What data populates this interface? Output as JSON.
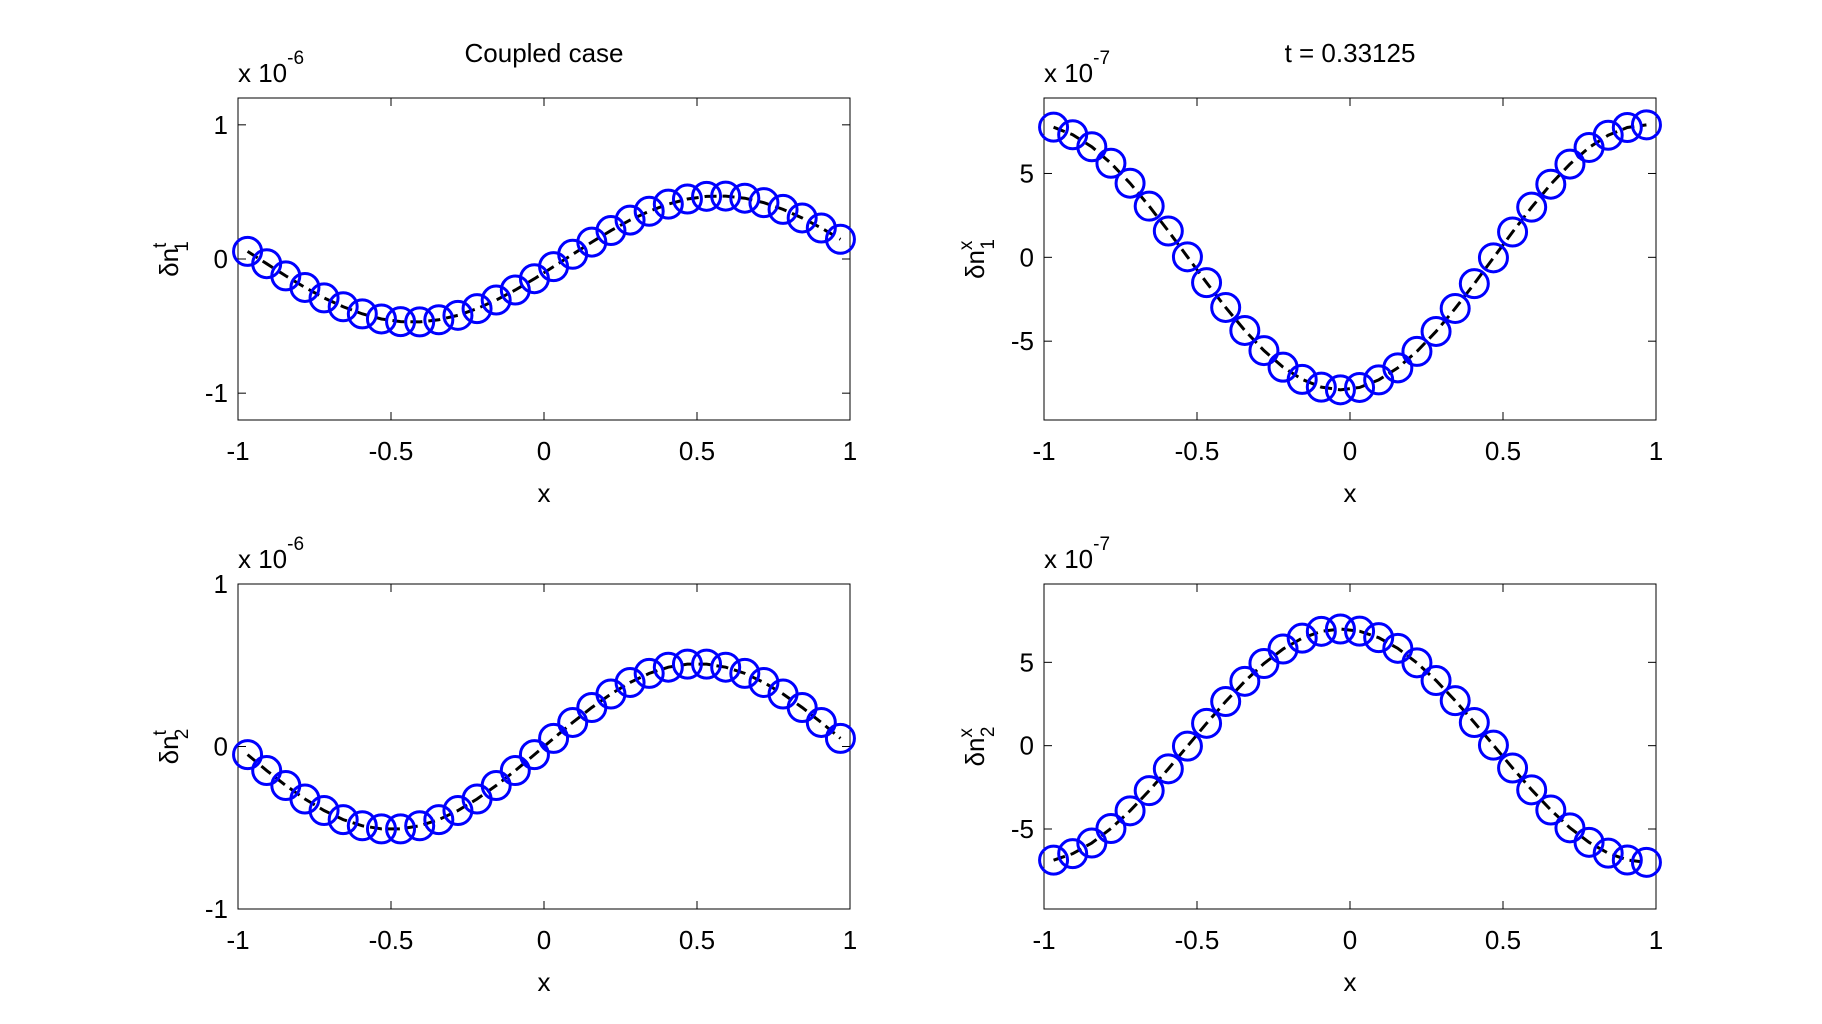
{
  "chart_data": [
    {
      "type": "line",
      "title": "Coupled case",
      "y_multiplier": {
        "base": "x 10",
        "exponent": "-6"
      },
      "ylabel": {
        "base": "δn",
        "superscript": "t",
        "subscript": "1"
      },
      "xlabel": "x",
      "x": [
        -0.96875,
        -0.90625,
        -0.84375,
        -0.78125,
        -0.71875,
        -0.65625,
        -0.59375,
        -0.53125,
        -0.46875,
        -0.40625,
        -0.34375,
        -0.28125,
        -0.21875,
        -0.15625,
        -0.09375,
        -0.03125,
        0.03125,
        0.09375,
        0.15625,
        0.21875,
        0.28125,
        0.34375,
        0.40625,
        0.46875,
        0.53125,
        0.59375,
        0.65625,
        0.71875,
        0.78125,
        0.84375,
        0.90625,
        0.96875
      ],
      "series": [
        {
          "color": "#0000ff",
          "line_color": "#000000",
          "values": [
            0.057,
            -0.035,
            -0.126,
            -0.212,
            -0.29,
            -0.356,
            -0.409,
            -0.447,
            -0.467,
            -0.469,
            -0.453,
            -0.42,
            -0.37,
            -0.306,
            -0.231,
            -0.147,
            -0.057,
            0.035,
            0.126,
            0.212,
            0.29,
            0.356,
            0.409,
            0.447,
            0.467,
            0.469,
            0.453,
            0.42,
            0.37,
            0.306,
            0.231,
            0.147
          ]
        }
      ],
      "xlim": [
        -1,
        1
      ],
      "xticks": [
        -1,
        -0.5,
        0,
        0.5,
        1
      ],
      "ylim": [
        -1.2,
        1.2
      ],
      "yticks": [
        -1,
        0,
        1
      ]
    },
    {
      "type": "line",
      "title": "t = 0.33125",
      "y_multiplier": {
        "base": "x 10",
        "exponent": "-7"
      },
      "ylabel": {
        "base": "δn",
        "superscript": "x",
        "subscript": "1"
      },
      "xlabel": "x",
      "x": [
        -0.96875,
        -0.90625,
        -0.84375,
        -0.78125,
        -0.71875,
        -0.65625,
        -0.59375,
        -0.53125,
        -0.46875,
        -0.40625,
        -0.34375,
        -0.28125,
        -0.21875,
        -0.15625,
        -0.09375,
        -0.03125,
        0.03125,
        0.09375,
        0.15625,
        0.21875,
        0.28125,
        0.34375,
        0.40625,
        0.46875,
        0.53125,
        0.59375,
        0.65625,
        0.71875,
        0.78125,
        0.84375,
        0.90625,
        0.96875
      ],
      "series": [
        {
          "color": "#0000ff",
          "line_color": "#000000",
          "values": [
            7.76,
            7.31,
            6.59,
            5.61,
            4.42,
            3.05,
            1.57,
            0.03,
            -1.51,
            -2.99,
            -4.36,
            -5.56,
            -6.55,
            -7.28,
            -7.74,
            -7.9,
            -7.76,
            -7.31,
            -6.59,
            -5.61,
            -4.42,
            -3.05,
            -1.57,
            -0.03,
            1.51,
            2.99,
            4.36,
            5.56,
            6.55,
            7.28,
            7.74,
            7.9
          ]
        }
      ],
      "xlim": [
        -1,
        1
      ],
      "xticks": [
        -1,
        -0.5,
        0,
        0.5,
        1
      ],
      "ylim": [
        -9.7,
        9.5
      ],
      "yticks": [
        -5,
        0,
        5
      ]
    },
    {
      "type": "line",
      "y_multiplier": {
        "base": "x 10",
        "exponent": "-6"
      },
      "ylabel": {
        "base": "δn",
        "superscript": "t",
        "subscript": "2"
      },
      "xlabel": "x",
      "x": [
        -0.96875,
        -0.90625,
        -0.84375,
        -0.78125,
        -0.71875,
        -0.65625,
        -0.59375,
        -0.53125,
        -0.46875,
        -0.40625,
        -0.34375,
        -0.28125,
        -0.21875,
        -0.15625,
        -0.09375,
        -0.03125,
        0.03125,
        0.09375,
        0.15625,
        0.21875,
        0.28125,
        0.34375,
        0.40625,
        0.46875,
        0.53125,
        0.59375,
        0.65625,
        0.71875,
        0.78125,
        0.84375,
        0.90625,
        0.96875
      ],
      "series": [
        {
          "color": "#0000ff",
          "line_color": "#000000",
          "values": [
            -0.05,
            -0.148,
            -0.24,
            -0.323,
            -0.394,
            -0.45,
            -0.488,
            -0.507,
            -0.507,
            -0.488,
            -0.45,
            -0.394,
            -0.323,
            -0.24,
            -0.148,
            -0.05,
            0.05,
            0.148,
            0.24,
            0.323,
            0.394,
            0.45,
            0.488,
            0.507,
            0.507,
            0.488,
            0.45,
            0.394,
            0.323,
            0.24,
            0.148,
            0.05
          ]
        }
      ],
      "xlim": [
        -1,
        1
      ],
      "xticks": [
        -1,
        -0.5,
        0,
        0.5,
        1
      ],
      "ylim": [
        -1,
        1
      ],
      "yticks": [
        -1,
        0,
        1
      ]
    },
    {
      "type": "line",
      "y_multiplier": {
        "base": "x 10",
        "exponent": "-7"
      },
      "ylabel": {
        "base": "δn",
        "superscript": "x",
        "subscript": "2"
      },
      "xlabel": "x",
      "x": [
        -0.96875,
        -0.90625,
        -0.84375,
        -0.78125,
        -0.71875,
        -0.65625,
        -0.59375,
        -0.53125,
        -0.46875,
        -0.40625,
        -0.34375,
        -0.28125,
        -0.21875,
        -0.15625,
        -0.09375,
        -0.03125,
        0.03125,
        0.09375,
        0.15625,
        0.21875,
        0.28125,
        0.34375,
        0.40625,
        0.46875,
        0.53125,
        0.59375,
        0.65625,
        0.71875,
        0.78125,
        0.84375,
        0.90625,
        0.96875
      ],
      "series": [
        {
          "color": "#0000ff",
          "line_color": "#000000",
          "values": [
            -6.87,
            -6.48,
            -5.84,
            -4.97,
            -3.91,
            -2.7,
            -1.39,
            -0.03,
            1.34,
            2.65,
            3.86,
            4.93,
            5.8,
            6.45,
            6.86,
            7.0,
            6.87,
            6.48,
            5.84,
            4.97,
            3.91,
            2.7,
            1.39,
            0.03,
            -1.34,
            -2.65,
            -3.86,
            -4.93,
            -5.8,
            -6.45,
            -6.86,
            -7.0
          ]
        }
      ],
      "xlim": [
        -1,
        1
      ],
      "xticks": [
        -1,
        -0.5,
        0,
        0.5,
        1
      ],
      "ylim": [
        -9.8,
        9.7
      ],
      "yticks": [
        -5,
        0,
        5
      ]
    }
  ]
}
